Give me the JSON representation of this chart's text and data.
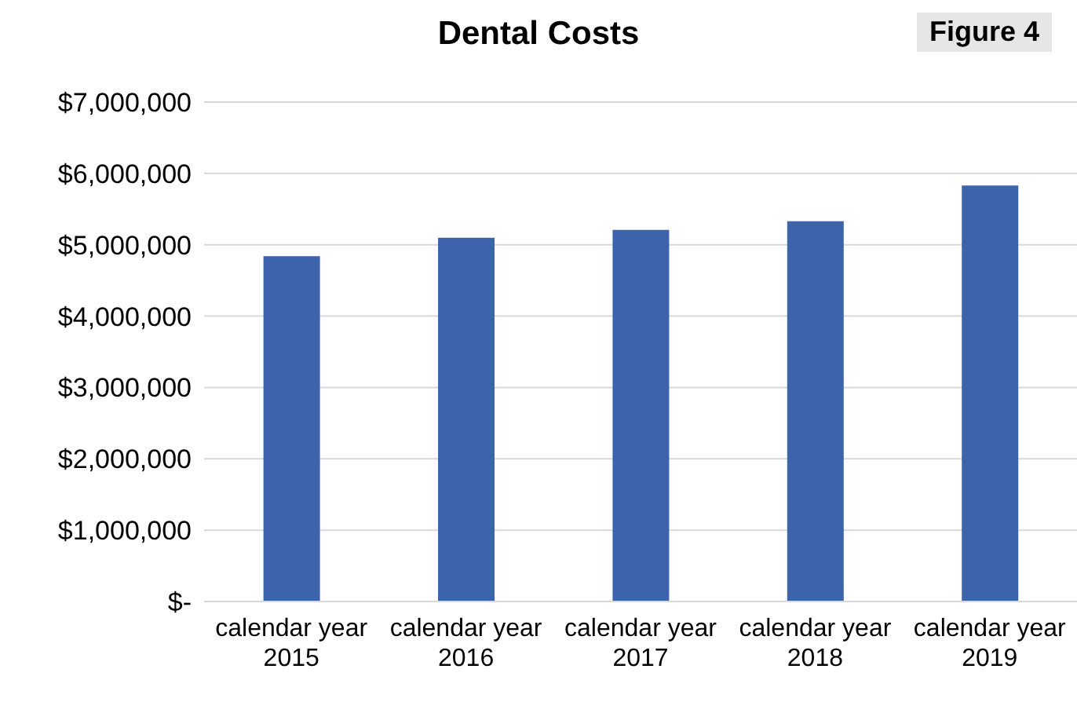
{
  "chart_data": {
    "type": "bar",
    "title": "Dental Costs",
    "annotations": [
      "Figure 4"
    ],
    "categories": [
      "calendar year 2015",
      "calendar year 2016",
      "calendar year 2017",
      "calendar year 2018",
      "calendar year 2019"
    ],
    "values": [
      4840000,
      5100000,
      5210000,
      5330000,
      5830000
    ],
    "color": "#3c63ab",
    "ylim": [
      0,
      7000000
    ],
    "yticks": [
      {
        "value": 0,
        "label": "$-"
      },
      {
        "value": 1000000,
        "label": "$1,000,000"
      },
      {
        "value": 2000000,
        "label": "$2,000,000"
      },
      {
        "value": 3000000,
        "label": "$3,000,000"
      },
      {
        "value": 4000000,
        "label": "$4,000,000"
      },
      {
        "value": 5000000,
        "label": "$5,000,000"
      },
      {
        "value": 6000000,
        "label": "$6,000,000"
      },
      {
        "value": 7000000,
        "label": "$7,000,000"
      }
    ],
    "grid": "y"
  }
}
